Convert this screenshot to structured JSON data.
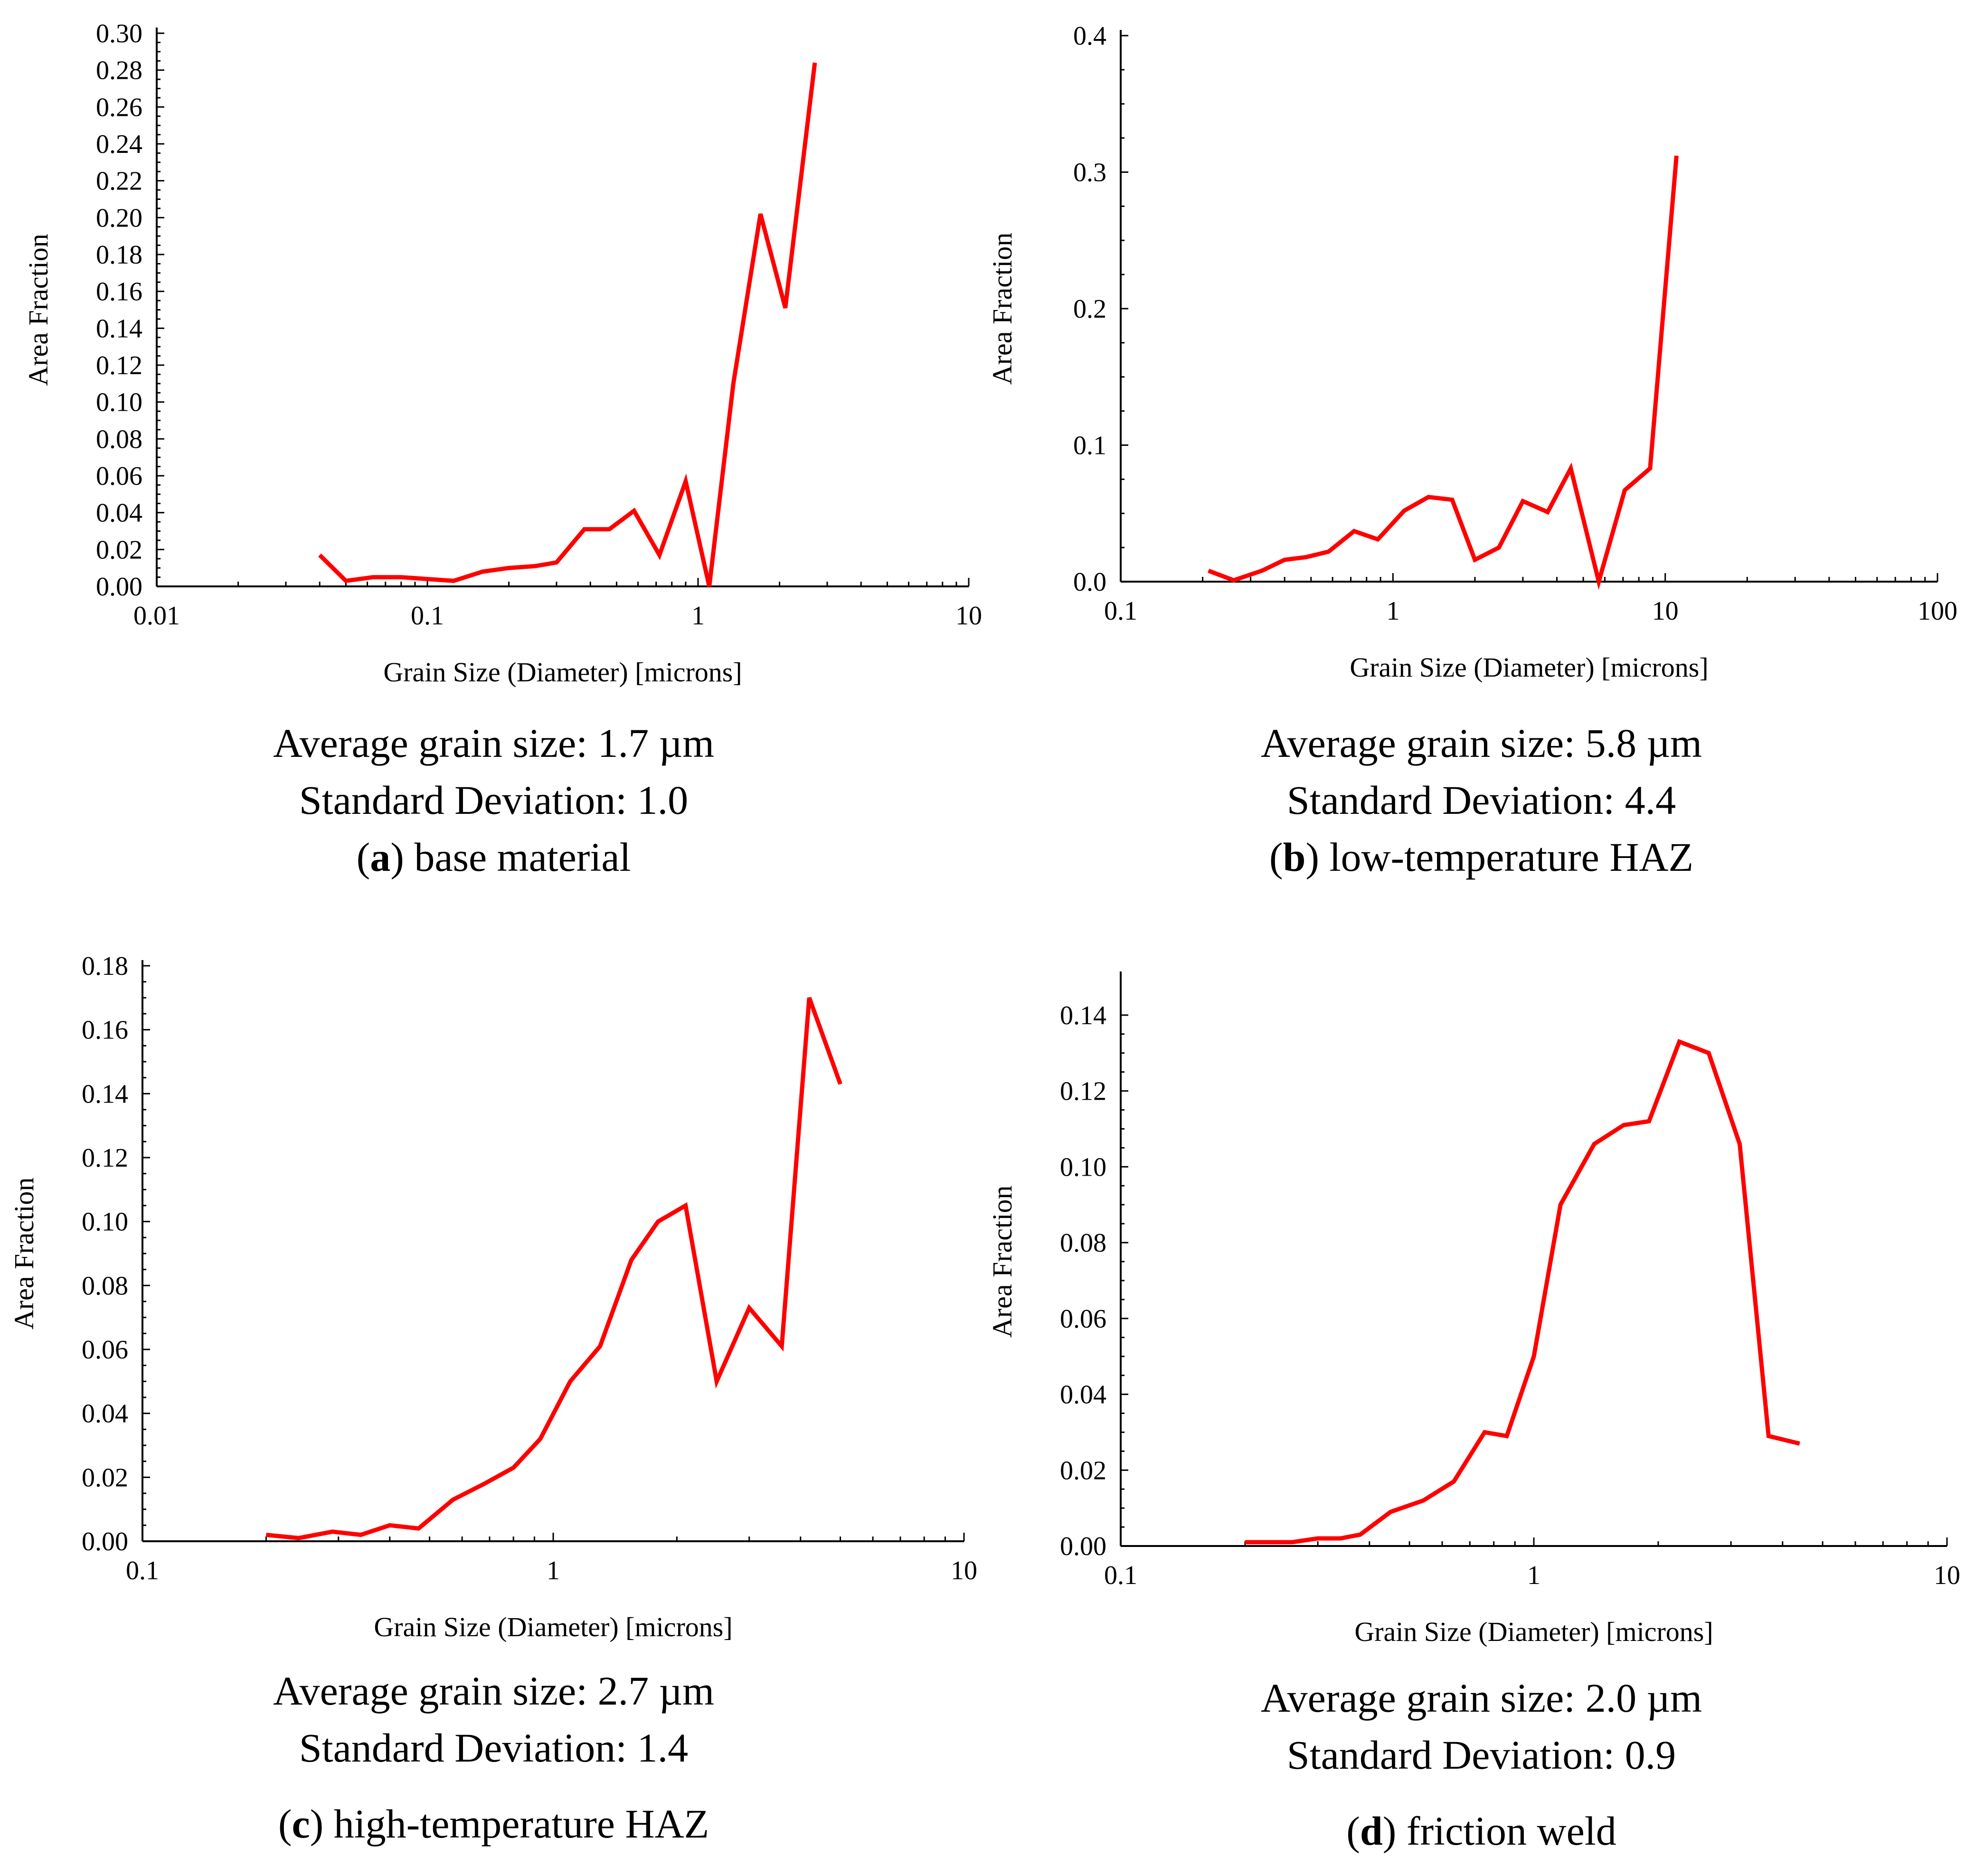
{
  "chart_data": [
    {
      "type": "line",
      "panel_letter": "a",
      "panel_caption": "base material",
      "average_text": "Average grain size: 1.7 µm",
      "std_text": "Standard Deviation: 1.0",
      "xscale": "log",
      "xlim": [
        0.01,
        10
      ],
      "ylim": [
        0,
        0.3
      ],
      "xticks": [
        0.01,
        0.1,
        1,
        10
      ],
      "xtick_labels": [
        "0.01",
        "0.1",
        "1",
        "10"
      ],
      "yticks": [
        0,
        0.02,
        0.04,
        0.06,
        0.08,
        0.1,
        0.12,
        0.14,
        0.16,
        0.18,
        0.2,
        0.22,
        0.24,
        0.26,
        0.28,
        0.3
      ],
      "ytick_labels": [
        "0.00",
        "0.02",
        "0.04",
        "0.06",
        "0.08",
        "0.10",
        "0.12",
        "0.14",
        "0.16",
        "0.18",
        "0.20",
        "0.22",
        "0.24",
        "0.26",
        "0.28",
        "0.30"
      ],
      "xlabel": "Grain Size (Diameter) [microns]",
      "ylabel": "Area Fraction",
      "series": [
        {
          "name": "Area Fraction",
          "x": [
            0.04,
            0.05,
            0.063,
            0.08,
            0.1,
            0.125,
            0.16,
            0.2,
            0.25,
            0.3,
            0.38,
            0.47,
            0.58,
            0.72,
            0.9,
            1.1,
            1.35,
            1.7,
            2.1,
            2.7
          ],
          "y": [
            0.017,
            0.003,
            0.005,
            0.005,
            0.004,
            0.003,
            0.008,
            0.01,
            0.011,
            0.013,
            0.031,
            0.031,
            0.041,
            0.017,
            0.057,
            0.0,
            0.11,
            0.202,
            0.151,
            0.284
          ]
        }
      ]
    },
    {
      "type": "line",
      "panel_letter": "b",
      "panel_caption": "low-temperature HAZ",
      "average_text": "Average grain size: 5.8 µm",
      "std_text": "Standard Deviation: 4.4",
      "xscale": "log",
      "xlim": [
        0.1,
        100
      ],
      "ylim": [
        0,
        0.4
      ],
      "xticks": [
        0.1,
        1,
        10,
        100
      ],
      "xtick_labels": [
        "0.1",
        "1",
        "10",
        "100"
      ],
      "yticks": [
        0,
        0.1,
        0.2,
        0.3,
        0.4
      ],
      "ytick_labels": [
        "0.0",
        "0.1",
        "0.2",
        "0.3",
        "0.4"
      ],
      "xlabel": "Grain Size (Diameter) [microns]",
      "ylabel": "Area Fraction",
      "series": [
        {
          "name": "Area Fraction",
          "x": [
            0.21,
            0.26,
            0.33,
            0.4,
            0.48,
            0.58,
            0.72,
            0.88,
            1.1,
            1.35,
            1.65,
            2.0,
            2.45,
            3.0,
            3.7,
            4.5,
            5.7,
            7.1,
            8.8,
            11
          ],
          "y": [
            0.008,
            0.001,
            0.008,
            0.016,
            0.018,
            0.022,
            0.037,
            0.031,
            0.052,
            0.062,
            0.06,
            0.016,
            0.025,
            0.059,
            0.051,
            0.083,
            0.0,
            0.067,
            0.083,
            0.312
          ]
        }
      ]
    },
    {
      "type": "line",
      "panel_letter": "c",
      "panel_caption": "high-temperature HAZ",
      "average_text": "Average grain size: 2.7 µm",
      "std_text": "Standard Deviation: 1.4",
      "xscale": "log",
      "xlim": [
        0.1,
        10
      ],
      "ylim": [
        0,
        0.18
      ],
      "xticks": [
        0.1,
        1,
        10
      ],
      "xtick_labels": [
        "0.1",
        "1",
        "10"
      ],
      "yticks": [
        0,
        0.02,
        0.04,
        0.06,
        0.08,
        0.1,
        0.12,
        0.14,
        0.16,
        0.18
      ],
      "ytick_labels": [
        "0.00",
        "0.02",
        "0.04",
        "0.06",
        "0.08",
        "0.10",
        "0.12",
        "0.14",
        "0.16",
        "0.18"
      ],
      "xlabel": "Grain Size (Diameter) [microns]",
      "ylabel": "Area Fraction",
      "series": [
        {
          "name": "Area Fraction",
          "x": [
            0.2,
            0.24,
            0.29,
            0.34,
            0.4,
            0.47,
            0.57,
            0.68,
            0.8,
            0.93,
            1.1,
            1.3,
            1.55,
            1.8,
            2.1,
            2.5,
            3.0,
            3.6,
            4.2,
            5.0
          ],
          "y": [
            0.002,
            0.001,
            0.003,
            0.002,
            0.005,
            0.004,
            0.013,
            0.018,
            0.023,
            0.032,
            0.05,
            0.061,
            0.088,
            0.1,
            0.105,
            0.05,
            0.073,
            0.061,
            0.17,
            0.143
          ]
        }
      ]
    },
    {
      "type": "line",
      "panel_letter": "d",
      "panel_caption": "friction weld",
      "average_text": "Average grain size: 2.0 µm",
      "std_text": "Standard Deviation: 0.9",
      "xscale": "log",
      "xlim": [
        0.1,
        10
      ],
      "ylim": [
        0,
        0.15
      ],
      "xticks": [
        0.1,
        1,
        10
      ],
      "xtick_labels": [
        "0.1",
        "1",
        "10"
      ],
      "yticks": [
        0,
        0.02,
        0.04,
        0.06,
        0.08,
        0.1,
        0.12,
        0.14
      ],
      "ytick_labels": [
        "0.00",
        "0.02",
        "0.04",
        "0.06",
        "0.08",
        "0.10",
        "0.12",
        "0.14"
      ],
      "xlabel": "Grain Size (Diameter) [microns]",
      "ylabel": "Area Fraction",
      "series": [
        {
          "name": "Area Fraction",
          "x": [
            0.2,
            0.26,
            0.3,
            0.34,
            0.38,
            0.45,
            0.54,
            0.64,
            0.76,
            0.86,
            1.0,
            1.16,
            1.4,
            1.65,
            1.9,
            2.25,
            2.65,
            3.15,
            3.7,
            4.4
          ],
          "y": [
            0.001,
            0.001,
            0.002,
            0.002,
            0.003,
            0.009,
            0.012,
            0.017,
            0.03,
            0.029,
            0.05,
            0.09,
            0.106,
            0.111,
            0.112,
            0.133,
            0.13,
            0.106,
            0.029,
            0.027
          ]
        }
      ]
    }
  ],
  "colors": {
    "series": "#ff0000",
    "axis": "#000000"
  }
}
